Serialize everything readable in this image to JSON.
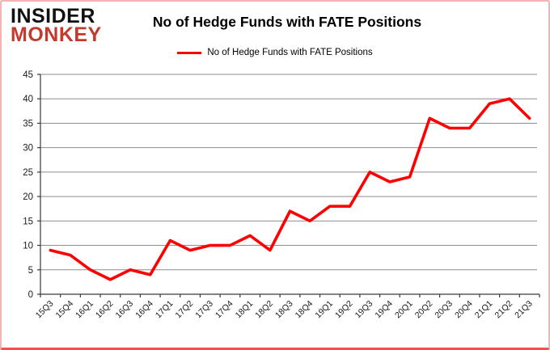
{
  "brand": {
    "line1": "INSIDER",
    "line2": "MONKEY",
    "accent_color": "#c43a2d"
  },
  "chart_data": {
    "type": "line",
    "title": "No of Hedge Funds with FATE Positions",
    "legend_position": "top",
    "grid": true,
    "categories": [
      "15Q3",
      "15Q4",
      "16Q1",
      "16Q2",
      "16Q3",
      "16Q4",
      "17Q1",
      "17Q2",
      "17Q3",
      "17Q4",
      "18Q1",
      "18Q2",
      "18Q3",
      "18Q4",
      "19Q1",
      "19Q2",
      "19Q3",
      "19Q4",
      "20Q1",
      "20Q2",
      "20Q3",
      "20Q4",
      "21Q1",
      "21Q2",
      "21Q3"
    ],
    "series": [
      {
        "name": "No of Hedge Funds with FATE Positions",
        "color": "#ff0000",
        "values": [
          9,
          8,
          5,
          3,
          5,
          4,
          11,
          9,
          10,
          10,
          12,
          9,
          17,
          15,
          18,
          18,
          25,
          23,
          24,
          36,
          34,
          34,
          39,
          40,
          36
        ]
      }
    ],
    "ylim": [
      0,
      45
    ],
    "ytick_step": 5,
    "yticks": [
      0,
      5,
      10,
      15,
      20,
      25,
      30,
      35,
      40,
      45
    ],
    "xlabel": "",
    "ylabel": "",
    "colors": {
      "gridline": "#8e8e8e",
      "axis": "#3a3a3a",
      "tick_label": "#1a1a1a"
    }
  }
}
